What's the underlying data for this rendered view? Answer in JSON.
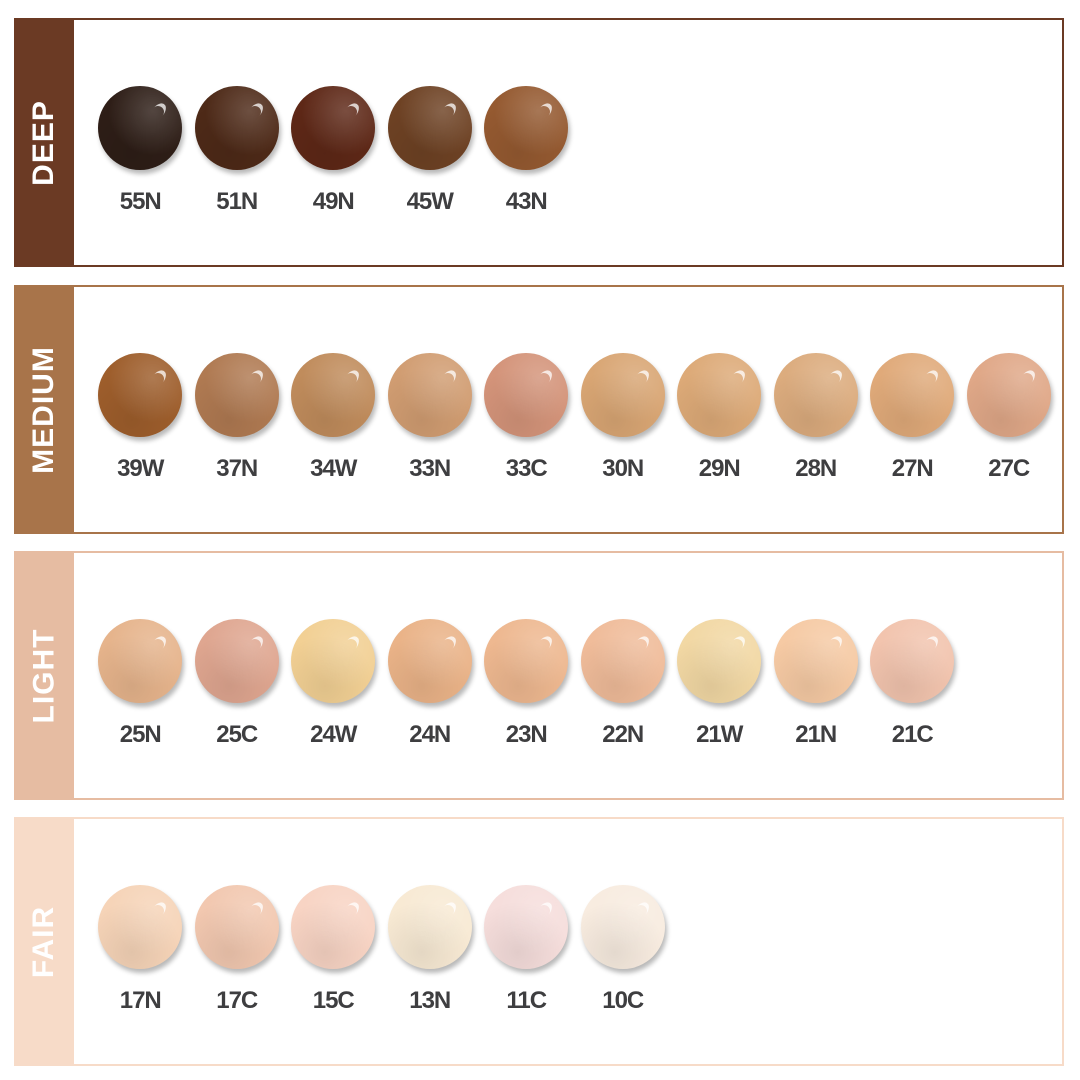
{
  "sections": [
    {
      "label": "DEEP",
      "color": "#6b3a24",
      "shades": [
        {
          "name": "55N",
          "color": "#2e1e17"
        },
        {
          "name": "51N",
          "color": "#4e2a18"
        },
        {
          "name": "49N",
          "color": "#5e2817"
        },
        {
          "name": "45W",
          "color": "#6e4224"
        },
        {
          "name": "43N",
          "color": "#955a31"
        }
      ]
    },
    {
      "label": "MEDIUM",
      "color": "#a8744a",
      "shades": [
        {
          "name": "39W",
          "color": "#9e5e2c"
        },
        {
          "name": "37N",
          "color": "#b07a52"
        },
        {
          "name": "34W",
          "color": "#c08c5c"
        },
        {
          "name": "33N",
          "color": "#d19d72"
        },
        {
          "name": "33C",
          "color": "#d4947a"
        },
        {
          "name": "30N",
          "color": "#d9a674"
        },
        {
          "name": "29N",
          "color": "#ddaa78"
        },
        {
          "name": "28N",
          "color": "#dcac7e"
        },
        {
          "name": "27N",
          "color": "#e0aa7a"
        },
        {
          "name": "27C",
          "color": "#e0a888"
        }
      ]
    },
    {
      "label": "LIGHT",
      "color": "#e6bca2",
      "shades": [
        {
          "name": "25N",
          "color": "#e6b48c"
        },
        {
          "name": "25C",
          "color": "#dfa690"
        },
        {
          "name": "24W",
          "color": "#f2d094"
        },
        {
          "name": "24N",
          "color": "#eab388"
        },
        {
          "name": "23N",
          "color": "#eeb890"
        },
        {
          "name": "22N",
          "color": "#f0bc9a"
        },
        {
          "name": "21W",
          "color": "#f2d8a4"
        },
        {
          "name": "21N",
          "color": "#f6caa4"
        },
        {
          "name": "21C",
          "color": "#f2c4ae"
        }
      ]
    },
    {
      "label": "FAIR",
      "color": "#f7dbc8",
      "shades": [
        {
          "name": "17N",
          "color": "#f6d4b8"
        },
        {
          "name": "17C",
          "color": "#f2c8b0"
        },
        {
          "name": "15C",
          "color": "#f8d4c4"
        },
        {
          "name": "13N",
          "color": "#f8ead4"
        },
        {
          "name": "11C",
          "color": "#f6dedc"
        },
        {
          "name": "10C",
          "color": "#f8ece0"
        }
      ]
    }
  ]
}
